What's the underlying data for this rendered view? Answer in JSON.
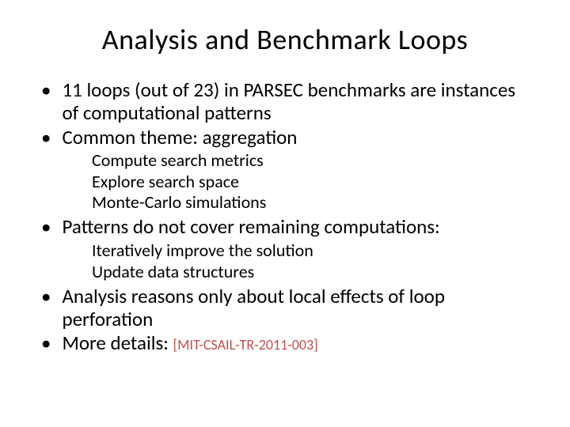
{
  "slide": {
    "title": "Analysis and Benchmark Loops",
    "title_fontsize": 36,
    "body_fontsize": 25,
    "sub_fontsize": 22,
    "citation_fontsize": 18,
    "background_color": "#ffffff",
    "text_color": "#000000",
    "citation_color": "#c0504d",
    "font_family": "Calibri",
    "bullets": [
      {
        "text": "11 loops (out of 23) in PARSEC benchmarks are instances of computational patterns"
      },
      {
        "text": "Common theme: aggregation",
        "sub": [
          "Compute search metrics",
          "Explore search space",
          "Monte-Carlo simulations"
        ]
      },
      {
        "text": "Patterns do not cover remaining computations:",
        "sub": [
          "Iteratively improve the solution",
          "Update data structures"
        ]
      },
      {
        "text": "Analysis reasons only about local effects of loop perforation"
      },
      {
        "text": "More details: ",
        "citation": "[MIT-CSAIL-TR-2011-003]"
      }
    ]
  }
}
